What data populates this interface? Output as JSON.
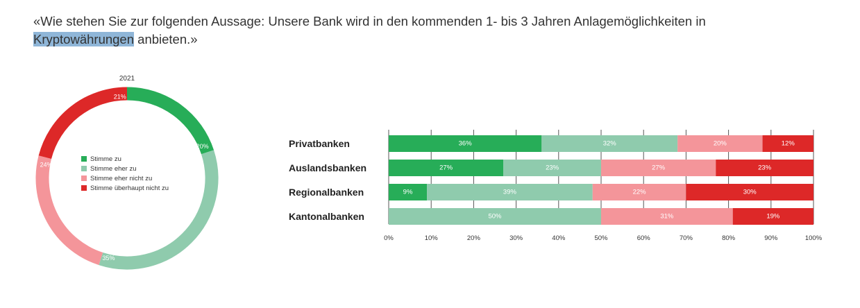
{
  "question": {
    "before": "«Wie stehen Sie zur folgenden Aussage: Unsere Bank wird in den kommenden 1- bis 3 Jahren Anlagemöglichkeiten in",
    "highlight": "Kryptowährungen",
    "after": " anbieten.»"
  },
  "colors": {
    "stimme_zu": "#27ad58",
    "eher_zu": "#8fcbad",
    "eher_nicht_zu": "#f4959a",
    "ueberhaupt_nicht_zu": "#dd2828",
    "highlight": "#8fb6d8",
    "text": "#333333"
  },
  "chart_data": [
    {
      "type": "pie",
      "variant": "donut",
      "title": "2021",
      "categories": [
        "Stimme zu",
        "Stimme eher zu",
        "Stimme eher nicht zu",
        "Stimme überhaupt nicht zu"
      ],
      "values": [
        20,
        35,
        24,
        21
      ],
      "value_labels": [
        "20%",
        "35%",
        "24%",
        "21%"
      ],
      "legend_placement": "center"
    },
    {
      "type": "bar",
      "orientation": "horizontal",
      "stacked": true,
      "categories": [
        "Privatbanken",
        "Auslandsbanken",
        "Regionalbanken",
        "Kantonalbanken"
      ],
      "series": [
        {
          "name": "Stimme zu",
          "values": [
            36,
            27,
            9,
            0
          ]
        },
        {
          "name": "Stimme eher zu",
          "values": [
            32,
            23,
            39,
            50
          ]
        },
        {
          "name": "Stimme eher nicht zu",
          "values": [
            20,
            27,
            22,
            31
          ]
        },
        {
          "name": "Stimme überhaupt nicht zu",
          "values": [
            12,
            23,
            30,
            19
          ]
        }
      ],
      "xlim": [
        0,
        100
      ],
      "x_ticks": [
        "0%",
        "10%",
        "20%",
        "30%",
        "40%",
        "50%",
        "60%",
        "70%",
        "80%",
        "90%",
        "100%"
      ],
      "grid": true,
      "legend_placement": "none"
    }
  ]
}
